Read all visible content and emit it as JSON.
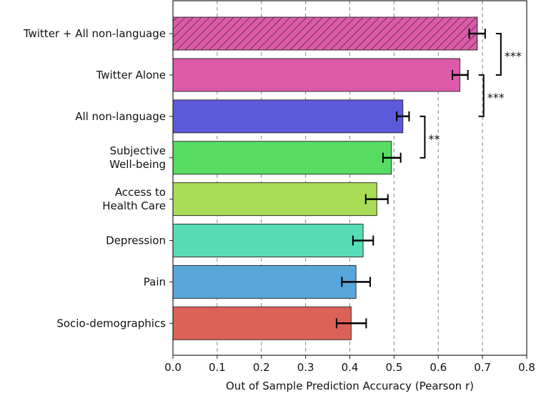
{
  "chart_data": {
    "type": "bar",
    "orientation": "horizontal",
    "title": "",
    "xlabel": "Out of Sample Prediction Accuracy (Pearson r)",
    "ylabel": "",
    "xlim": [
      0,
      0.8
    ],
    "xticks": [
      "0.0",
      "0.1",
      "0.2",
      "0.3",
      "0.4",
      "0.5",
      "0.6",
      "0.7",
      "0.8"
    ],
    "grid": "vertical dashed",
    "categories": [
      [
        "Twitter + All non-language"
      ],
      [
        "Twitter Alone"
      ],
      [
        "All non-language"
      ],
      [
        "Subjective",
        "Well-being"
      ],
      [
        "Access to",
        "Health Care"
      ],
      [
        "Depression"
      ],
      [
        "Pain"
      ],
      [
        "Socio-demographics"
      ]
    ],
    "values": [
      0.688,
      0.649,
      0.52,
      0.494,
      0.461,
      0.43,
      0.414,
      0.403
    ],
    "error_low": [
      0.67,
      0.632,
      0.506,
      0.475,
      0.436,
      0.407,
      0.382,
      0.37
    ],
    "error_high": [
      0.706,
      0.667,
      0.534,
      0.515,
      0.486,
      0.453,
      0.446,
      0.437
    ],
    "colors": [
      "#dc5aa8",
      "#dc5aa8",
      "#5d59db",
      "#57dc61",
      "#a9dc57",
      "#57dcb8",
      "#57a6dc",
      "#dc6157"
    ],
    "hatched": [
      true,
      false,
      false,
      false,
      false,
      false,
      false,
      false
    ],
    "significance": [
      {
        "from": 0,
        "to": 1,
        "label": "***"
      },
      {
        "from": 1,
        "to": 2,
        "label": "***"
      },
      {
        "from": 2,
        "to": 3,
        "label": "**"
      }
    ]
  }
}
